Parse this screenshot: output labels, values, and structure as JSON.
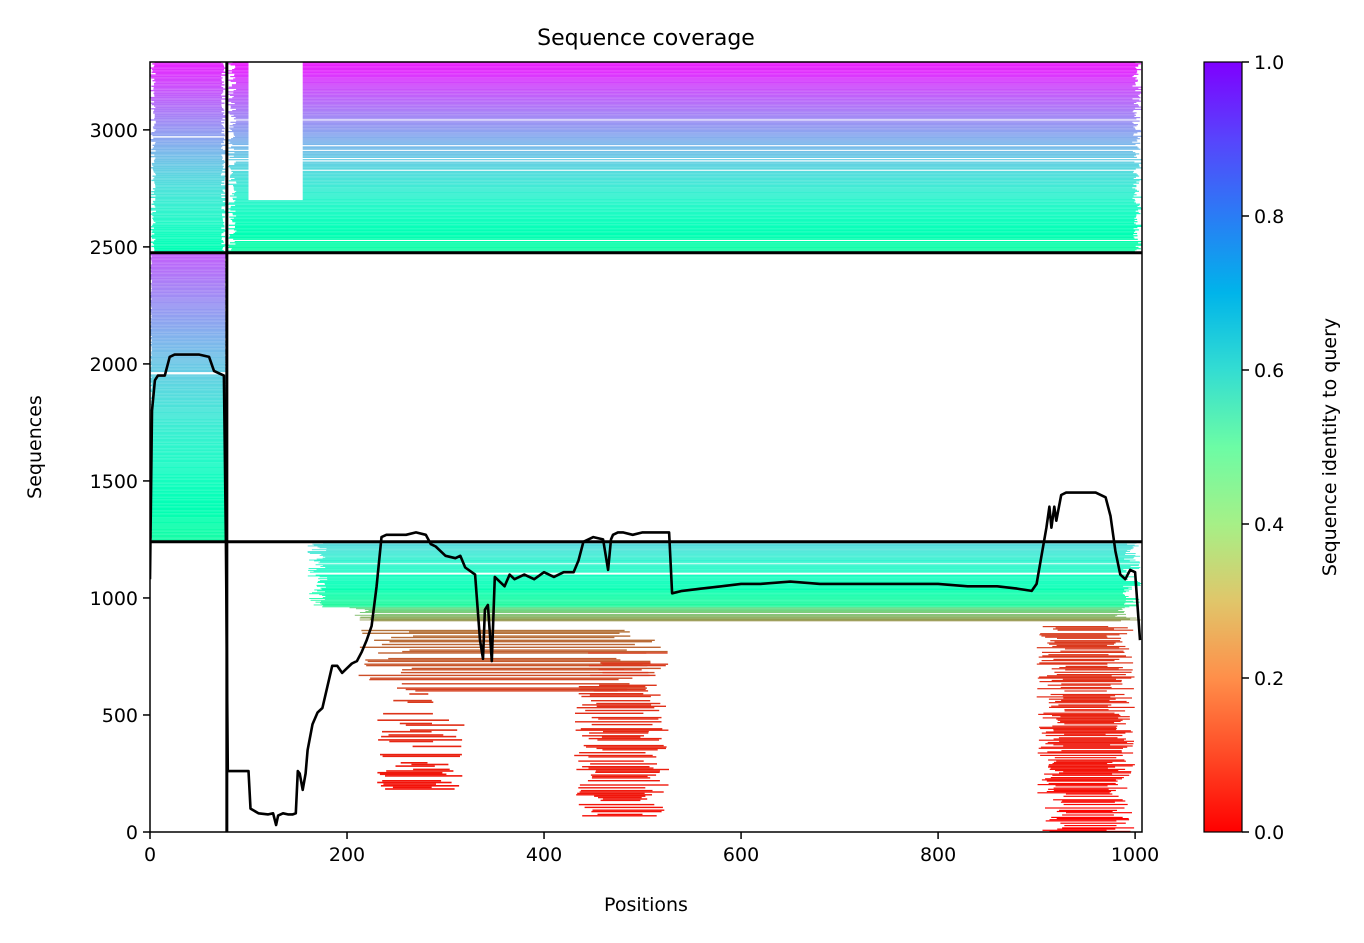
{
  "chart_data": {
    "type": "heatmap",
    "title": "Sequence coverage",
    "xlabel": "Positions",
    "ylabel": "Sequences",
    "xlim": [
      0,
      1007
    ],
    "ylim": [
      0,
      3290
    ],
    "xticks": [
      0,
      200,
      400,
      600,
      800,
      1000
    ],
    "yticks": [
      0,
      500,
      1000,
      1500,
      2000,
      2500,
      3000
    ],
    "colorbar": {
      "label": "Sequence identity to query",
      "range": [
        0.0,
        1.0
      ],
      "ticks": [
        "0.0",
        "0.2",
        "0.4",
        "0.6",
        "0.8",
        "1.0"
      ],
      "colormap": "rainbow_r"
    },
    "dividers": {
      "vertical_x": [
        78
      ],
      "horizontal_y": [
        1240,
        2475
      ]
    },
    "coverage_line": {
      "x": [
        0,
        2,
        5,
        8,
        15,
        20,
        25,
        30,
        40,
        50,
        60,
        65,
        70,
        75,
        77,
        79,
        80,
        82,
        90,
        100,
        102,
        110,
        120,
        125,
        128,
        130,
        135,
        140,
        145,
        148,
        150,
        152,
        155,
        158,
        160,
        165,
        170,
        175,
        180,
        185,
        190,
        195,
        200,
        205,
        210,
        215,
        220,
        225,
        230,
        235,
        240,
        250,
        260,
        270,
        280,
        285,
        290,
        300,
        310,
        315,
        320,
        330,
        335,
        338,
        340,
        343,
        347,
        350,
        360,
        365,
        370,
        380,
        390,
        400,
        410,
        420,
        430,
        435,
        440,
        450,
        460,
        465,
        468,
        470,
        475,
        480,
        490,
        500,
        510,
        520,
        527,
        530,
        540,
        560,
        580,
        600,
        620,
        650,
        680,
        700,
        720,
        750,
        780,
        800,
        830,
        860,
        880,
        895,
        900,
        910,
        913,
        915,
        918,
        920,
        925,
        930,
        940,
        950,
        960,
        970,
        975,
        980,
        985,
        990,
        995,
        1000,
        1005
      ],
      "y": [
        1080,
        1800,
        1930,
        1950,
        1950,
        2030,
        2040,
        2040,
        2040,
        2040,
        2030,
        1970,
        1960,
        1950,
        1240,
        260,
        260,
        260,
        260,
        260,
        100,
        80,
        75,
        80,
        30,
        70,
        80,
        75,
        75,
        80,
        260,
        250,
        180,
        250,
        350,
        460,
        510,
        530,
        620,
        710,
        710,
        680,
        700,
        720,
        730,
        770,
        820,
        880,
        1050,
        1260,
        1270,
        1270,
        1270,
        1280,
        1270,
        1230,
        1220,
        1180,
        1170,
        1180,
        1130,
        1100,
        820,
        740,
        950,
        970,
        730,
        1090,
        1050,
        1100,
        1080,
        1100,
        1080,
        1110,
        1090,
        1110,
        1110,
        1160,
        1240,
        1260,
        1250,
        1120,
        1250,
        1270,
        1280,
        1280,
        1270,
        1280,
        1280,
        1280,
        1280,
        1020,
        1030,
        1040,
        1050,
        1060,
        1060,
        1070,
        1060,
        1060,
        1060,
        1060,
        1060,
        1060,
        1050,
        1050,
        1040,
        1030,
        1060,
        1300,
        1390,
        1300,
        1390,
        1330,
        1440,
        1450,
        1450,
        1450,
        1450,
        1430,
        1350,
        1200,
        1100,
        1080,
        1120,
        1110,
        820
      ]
    }
  }
}
